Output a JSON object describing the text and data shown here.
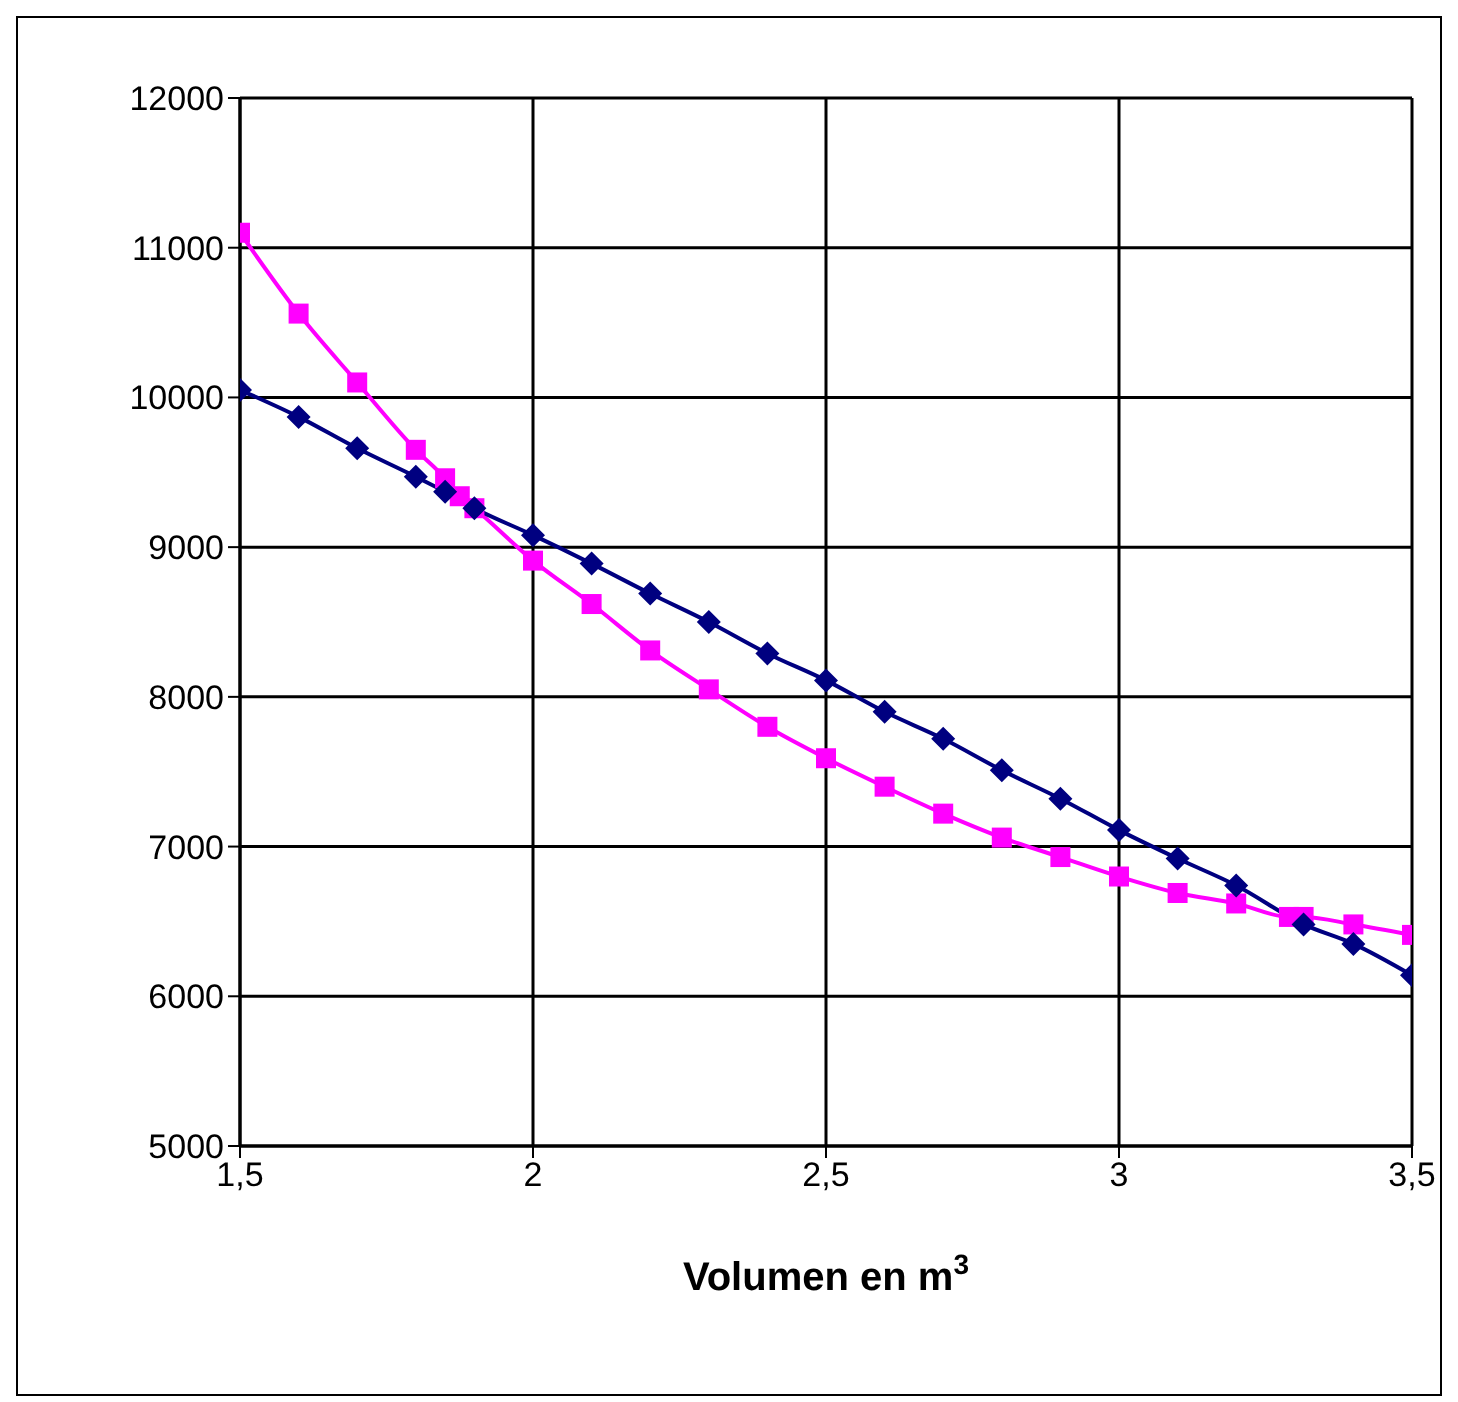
{
  "chart_data": {
    "type": "line",
    "xlabel": "Volumen en m$^{3}$",
    "xlim": [
      1.5,
      3.5
    ],
    "xticks": [
      {
        "value": 1.5,
        "label": "1,5"
      },
      2,
      {
        "value": 2.5,
        "label": "2,5"
      },
      3,
      {
        "value": 3.5,
        "label": "3,5"
      }
    ],
    "ylim": [
      5000,
      12000
    ],
    "yticks": [
      5000,
      6000,
      7000,
      8000,
      9000,
      10000,
      11000,
      12000
    ],
    "grid": true,
    "legend": false,
    "series": [
      {
        "color": "#000080",
        "marker": "diamond",
        "x": [
          1.5,
          1.6,
          1.7,
          1.8,
          1.85,
          1.9,
          2.0,
          2.1,
          2.2,
          2.3,
          2.4,
          2.5,
          2.6,
          2.7,
          2.8,
          2.9,
          3.0,
          3.1,
          3.2,
          3.315,
          3.4,
          3.5
        ],
        "values": [
          10050,
          9870,
          9660,
          9470,
          9370,
          9260,
          9080,
          8890,
          8690,
          8500,
          8290,
          8110,
          7900,
          7720,
          7510,
          7320,
          7110,
          6920,
          6740,
          6480,
          6350,
          6140
        ]
      },
      {
        "color": "#ff00ff",
        "marker": "square",
        "x": [
          1.5,
          1.6,
          1.7,
          1.8,
          1.85,
          1.875,
          1.9,
          2.0,
          2.1,
          2.2,
          2.3,
          2.4,
          2.5,
          2.6,
          2.7,
          2.8,
          2.9,
          3.0,
          3.1,
          3.2,
          3.29,
          3.315,
          3.4,
          3.5
        ],
        "values": [
          11100,
          10560,
          10100,
          9650,
          9460,
          9340,
          9260,
          8910,
          8620,
          8310,
          8050,
          7800,
          7590,
          7400,
          7220,
          7060,
          6930,
          6800,
          6690,
          6620,
          6530,
          6530,
          6480,
          6410
        ]
      }
    ]
  }
}
